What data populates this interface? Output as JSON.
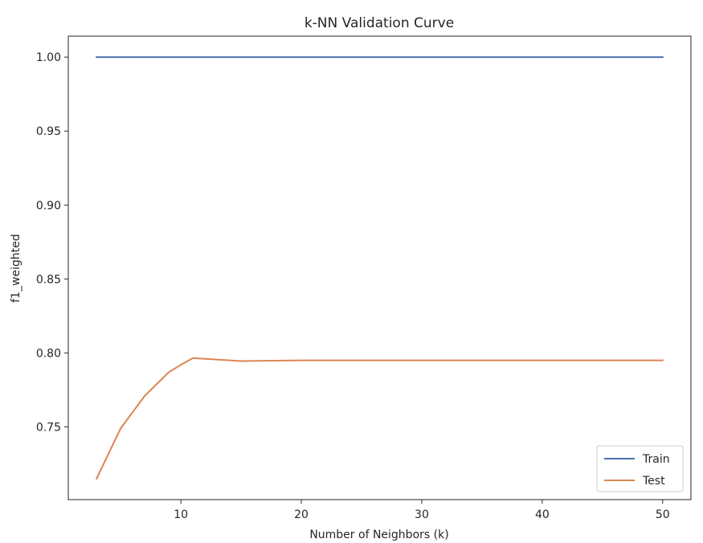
{
  "chart_data": {
    "type": "line",
    "title": "k-NN Validation Curve",
    "xlabel": "Number of Neighbors (k)",
    "ylabel": "f1_weighted",
    "xlim": [
      0.65,
      52.35
    ],
    "ylim": [
      0.7008,
      1.0142
    ],
    "xticks": [
      10,
      20,
      30,
      40,
      50
    ],
    "yticks": [
      0.75,
      0.8,
      0.85,
      0.9,
      0.95,
      1.0
    ],
    "ytick_labels": [
      "0.75",
      "0.80",
      "0.85",
      "0.90",
      "0.95",
      "1.00"
    ],
    "xtick_labels": [
      "10",
      "20",
      "30",
      "40",
      "50"
    ],
    "grid": false,
    "legend": {
      "placement": "lower-right",
      "entries": [
        "Train",
        "Test"
      ]
    },
    "series": [
      {
        "name": "Train",
        "color": "#4c72b0",
        "x": [
          3,
          5,
          7,
          9,
          11,
          15,
          20,
          30,
          40,
          50
        ],
        "y": [
          1.0,
          1.0,
          1.0,
          1.0,
          1.0,
          1.0,
          1.0,
          1.0,
          1.0,
          1.0
        ]
      },
      {
        "name": "Test",
        "color": "#dd8452",
        "x": [
          3,
          5,
          7,
          9,
          10,
          11,
          15,
          20,
          30,
          40,
          50
        ],
        "y": [
          0.715,
          0.749,
          0.771,
          0.787,
          0.792,
          0.7965,
          0.7945,
          0.795,
          0.795,
          0.795,
          0.795
        ]
      }
    ]
  }
}
